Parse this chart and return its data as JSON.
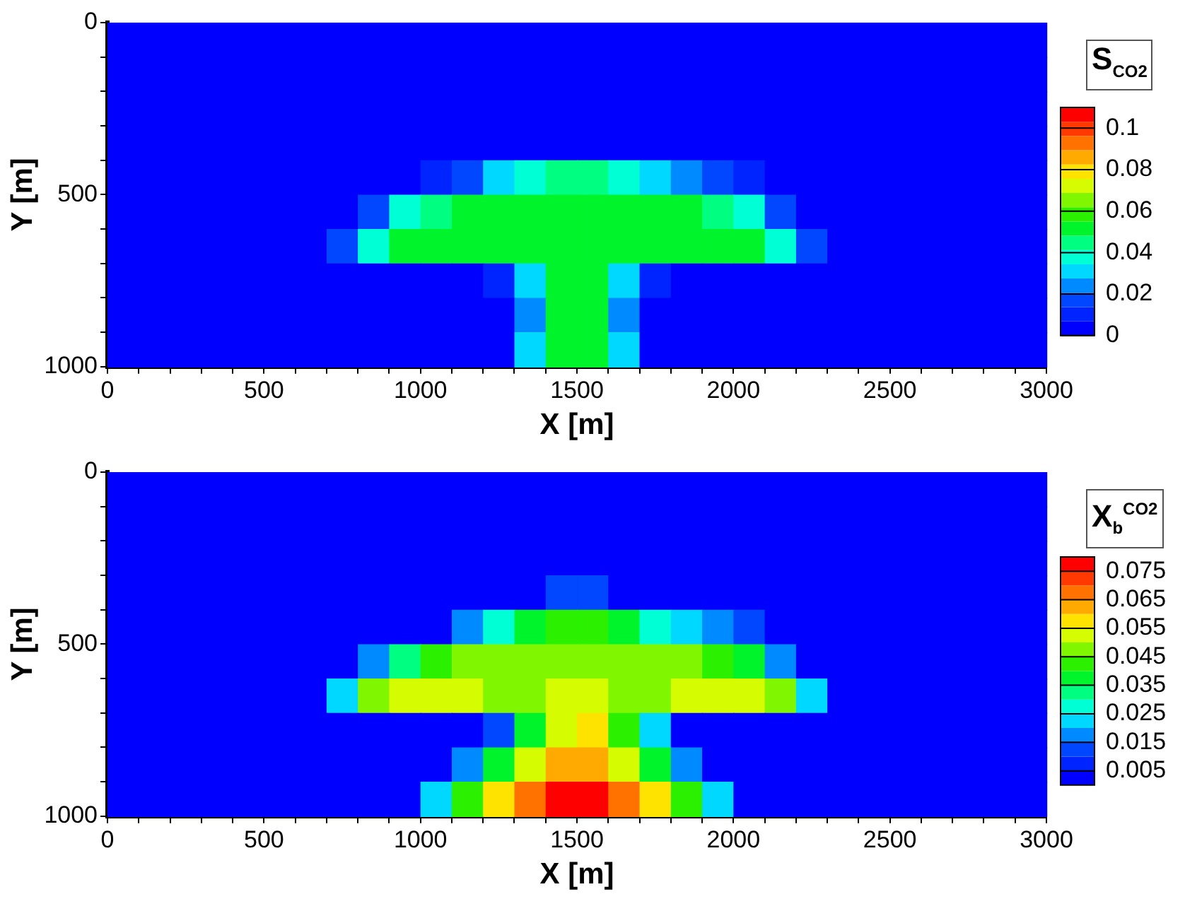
{
  "chart_data": [
    {
      "type": "heatmap",
      "xlabel": "X [m]",
      "ylabel": "Y [m]",
      "clabel": "S$_{CO2}$",
      "xlim": [
        0,
        3000
      ],
      "xticks": [
        0,
        {
          "value": 100,
          "label": null
        },
        {
          "value": 200,
          "label": null
        },
        {
          "value": 300,
          "label": null
        },
        {
          "value": 400,
          "label": null
        },
        500,
        {
          "value": 600,
          "label": null
        },
        {
          "value": 700,
          "label": null
        },
        {
          "value": 800,
          "label": null
        },
        {
          "value": 900,
          "label": null
        },
        1000,
        {
          "value": 1100,
          "label": null
        },
        {
          "value": 1200,
          "label": null
        },
        {
          "value": 1300,
          "label": null
        },
        {
          "value": 1400,
          "label": null
        },
        1500,
        {
          "value": 1600,
          "label": null
        },
        {
          "value": 1700,
          "label": null
        },
        {
          "value": 1800,
          "label": null
        },
        {
          "value": 1900,
          "label": null
        },
        2000,
        {
          "value": 2100,
          "label": null
        },
        {
          "value": 2200,
          "label": null
        },
        {
          "value": 2300,
          "label": null
        },
        {
          "value": 2400,
          "label": null
        },
        2500,
        {
          "value": 2600,
          "label": null
        },
        {
          "value": 2700,
          "label": null
        },
        {
          "value": 2800,
          "label": null
        },
        {
          "value": 2900,
          "label": null
        },
        3000
      ],
      "ylim": [
        1000,
        0
      ],
      "yticks": [
        0,
        {
          "value": 100,
          "label": null
        },
        {
          "value": 200,
          "label": null
        },
        {
          "value": 300,
          "label": null
        },
        {
          "value": 400,
          "label": null
        },
        500,
        {
          "value": 600,
          "label": null
        },
        {
          "value": 700,
          "label": null
        },
        {
          "value": 800,
          "label": null
        },
        {
          "value": 900,
          "label": null
        },
        1000
      ],
      "clim": [
        0,
        0.11
      ],
      "cticks": [
        0,
        0.02,
        0.04,
        0.06,
        0.08,
        0.1
      ],
      "cells": [
        [
          0,
          0,
          0,
          0,
          0,
          0,
          0,
          0,
          0,
          0,
          0,
          0,
          0,
          0,
          0,
          0,
          0,
          0,
          0,
          0,
          0,
          0,
          0,
          0,
          0,
          0,
          0,
          0,
          0,
          0
        ],
        [
          0,
          0,
          0,
          0,
          0,
          0,
          0,
          0,
          0,
          0,
          0,
          0,
          0,
          0,
          0,
          0,
          0,
          0,
          0,
          0,
          0,
          0,
          0,
          0,
          0,
          0,
          0,
          0,
          0,
          0
        ],
        [
          0,
          0,
          0,
          0,
          0,
          0,
          0,
          0,
          0,
          0,
          0,
          0,
          0,
          0,
          0,
          0,
          0,
          0,
          0,
          0,
          0,
          0,
          0,
          0,
          0,
          0,
          0,
          0,
          0,
          0
        ],
        [
          0,
          0,
          0,
          0,
          0,
          0,
          0,
          0,
          0,
          0,
          0,
          0,
          0,
          0,
          0,
          0,
          0,
          0,
          0,
          0,
          0,
          0,
          0,
          0,
          0,
          0,
          0,
          0,
          0,
          0
        ],
        [
          0,
          0,
          0,
          0,
          0,
          0,
          0,
          0,
          0,
          0,
          0.01,
          0.02,
          0.03,
          0.04,
          0.045,
          0.045,
          0.04,
          0.03,
          0.025,
          0.02,
          0.01,
          0,
          0,
          0,
          0,
          0,
          0,
          0,
          0,
          0
        ],
        [
          0,
          0,
          0,
          0,
          0,
          0,
          0,
          0,
          0.02,
          0.04,
          0.045,
          0.05,
          0.05,
          0.05,
          0.05,
          0.05,
          0.05,
          0.05,
          0.05,
          0.045,
          0.04,
          0.02,
          0,
          0,
          0,
          0,
          0,
          0,
          0,
          0
        ],
        [
          0,
          0,
          0,
          0,
          0,
          0,
          0,
          0.02,
          0.04,
          0.05,
          0.05,
          0.05,
          0.05,
          0.05,
          0.05,
          0.05,
          0.05,
          0.05,
          0.05,
          0.05,
          0.05,
          0.04,
          0.02,
          0,
          0,
          0,
          0,
          0,
          0,
          0
        ],
        [
          0,
          0,
          0,
          0,
          0,
          0,
          0,
          0,
          0,
          0,
          0,
          0,
          0.01,
          0.03,
          0.05,
          0.05,
          0.03,
          0.01,
          0,
          0,
          0,
          0,
          0,
          0,
          0,
          0,
          0,
          0,
          0,
          0
        ],
        [
          0,
          0,
          0,
          0,
          0,
          0,
          0,
          0,
          0,
          0,
          0,
          0,
          0,
          0.025,
          0.05,
          0.05,
          0.025,
          0,
          0,
          0,
          0,
          0,
          0,
          0,
          0,
          0,
          0,
          0,
          0,
          0
        ],
        [
          0,
          0,
          0,
          0,
          0,
          0,
          0,
          0,
          0,
          0,
          0,
          0,
          0,
          0.03,
          0.05,
          0.05,
          0.03,
          0,
          0,
          0,
          0,
          0,
          0,
          0,
          0,
          0,
          0,
          0,
          0,
          0
        ]
      ]
    },
    {
      "type": "heatmap",
      "xlabel": "X [m]",
      "ylabel": "Y [m]",
      "clabel": "X$_{b}$$^{CO2}$",
      "xlim": [
        0,
        3000
      ],
      "xticks": [
        0,
        {
          "value": 100,
          "label": null
        },
        {
          "value": 200,
          "label": null
        },
        {
          "value": 300,
          "label": null
        },
        {
          "value": 400,
          "label": null
        },
        500,
        {
          "value": 600,
          "label": null
        },
        {
          "value": 700,
          "label": null
        },
        {
          "value": 800,
          "label": null
        },
        {
          "value": 900,
          "label": null
        },
        1000,
        {
          "value": 1100,
          "label": null
        },
        {
          "value": 1200,
          "label": null
        },
        {
          "value": 1300,
          "label": null
        },
        {
          "value": 1400,
          "label": null
        },
        1500,
        {
          "value": 1600,
          "label": null
        },
        {
          "value": 1700,
          "label": null
        },
        {
          "value": 1800,
          "label": null
        },
        {
          "value": 1900,
          "label": null
        },
        2000,
        {
          "value": 2100,
          "label": null
        },
        {
          "value": 2200,
          "label": null
        },
        {
          "value": 2300,
          "label": null
        },
        {
          "value": 2400,
          "label": null
        },
        2500,
        {
          "value": 2600,
          "label": null
        },
        {
          "value": 2700,
          "label": null
        },
        {
          "value": 2800,
          "label": null
        },
        {
          "value": 2900,
          "label": null
        },
        3000
      ],
      "ylim": [
        1000,
        0
      ],
      "yticks": [
        0,
        {
          "value": 100,
          "label": null
        },
        {
          "value": 200,
          "label": null
        },
        {
          "value": 300,
          "label": null
        },
        {
          "value": 400,
          "label": null
        },
        500,
        {
          "value": 600,
          "label": null
        },
        {
          "value": 700,
          "label": null
        },
        {
          "value": 800,
          "label": null
        },
        {
          "value": 900,
          "label": null
        },
        1000
      ],
      "clim": [
        0,
        0.08
      ],
      "cticks": [
        0.005,
        0.015,
        0.025,
        0.035,
        0.045,
        0.055,
        0.065,
        0.075
      ],
      "cells": [
        [
          0,
          0,
          0,
          0,
          0,
          0,
          0,
          0,
          0,
          0,
          0,
          0,
          0,
          0,
          0,
          0,
          0,
          0,
          0,
          0,
          0,
          0,
          0,
          0,
          0,
          0,
          0,
          0,
          0,
          0
        ],
        [
          0,
          0,
          0,
          0,
          0,
          0,
          0,
          0,
          0,
          0,
          0,
          0,
          0,
          0,
          0,
          0,
          0,
          0,
          0,
          0,
          0,
          0,
          0,
          0,
          0,
          0,
          0,
          0,
          0,
          0
        ],
        [
          0,
          0,
          0,
          0,
          0,
          0,
          0,
          0,
          0,
          0,
          0,
          0,
          0,
          0,
          0,
          0,
          0,
          0,
          0,
          0,
          0,
          0,
          0,
          0,
          0,
          0,
          0,
          0,
          0,
          0
        ],
        [
          0,
          0,
          0,
          0,
          0,
          0,
          0,
          0,
          0,
          0,
          0,
          0,
          0,
          0,
          0.01,
          0.01,
          0,
          0,
          0,
          0,
          0,
          0,
          0,
          0,
          0,
          0,
          0,
          0,
          0,
          0
        ],
        [
          0,
          0,
          0,
          0,
          0,
          0,
          0,
          0,
          0,
          0,
          0,
          0.015,
          0.025,
          0.035,
          0.04,
          0.04,
          0.035,
          0.025,
          0.02,
          0.015,
          0.01,
          0,
          0,
          0,
          0,
          0,
          0,
          0,
          0,
          0
        ],
        [
          0,
          0,
          0,
          0,
          0,
          0,
          0,
          0,
          0.015,
          0.03,
          0.04,
          0.045,
          0.045,
          0.045,
          0.045,
          0.045,
          0.045,
          0.045,
          0.045,
          0.04,
          0.035,
          0.015,
          0,
          0,
          0,
          0,
          0,
          0,
          0,
          0
        ],
        [
          0,
          0,
          0,
          0,
          0,
          0,
          0,
          0.02,
          0.045,
          0.05,
          0.05,
          0.05,
          0.045,
          0.045,
          0.05,
          0.05,
          0.045,
          0.045,
          0.05,
          0.05,
          0.05,
          0.045,
          0.02,
          0,
          0,
          0,
          0,
          0,
          0,
          0
        ],
        [
          0,
          0,
          0,
          0,
          0,
          0,
          0,
          0,
          0,
          0,
          0,
          0,
          0.01,
          0.035,
          0.05,
          0.055,
          0.04,
          0.02,
          0,
          0,
          0,
          0,
          0,
          0,
          0,
          0,
          0,
          0,
          0,
          0
        ],
        [
          0,
          0,
          0,
          0,
          0,
          0,
          0,
          0,
          0,
          0,
          0,
          0.015,
          0.035,
          0.05,
          0.06,
          0.06,
          0.05,
          0.035,
          0.015,
          0,
          0,
          0,
          0,
          0,
          0,
          0,
          0,
          0,
          0,
          0
        ],
        [
          0,
          0,
          0,
          0,
          0,
          0,
          0,
          0,
          0,
          0,
          0.02,
          0.04,
          0.055,
          0.065,
          0.075,
          0.075,
          0.065,
          0.055,
          0.04,
          0.02,
          0,
          0,
          0,
          0,
          0,
          0,
          0,
          0,
          0,
          0
        ]
      ]
    }
  ]
}
